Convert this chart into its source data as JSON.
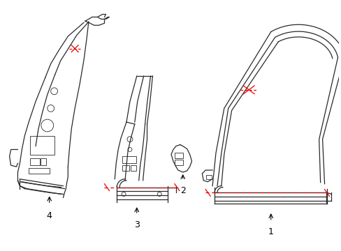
{
  "background_color": "#ffffff",
  "line_color": "#2a2a2a",
  "red_color": "#ee0000",
  "label_fontsize": 9,
  "figsize": [
    4.89,
    3.6
  ],
  "dpi": 100
}
